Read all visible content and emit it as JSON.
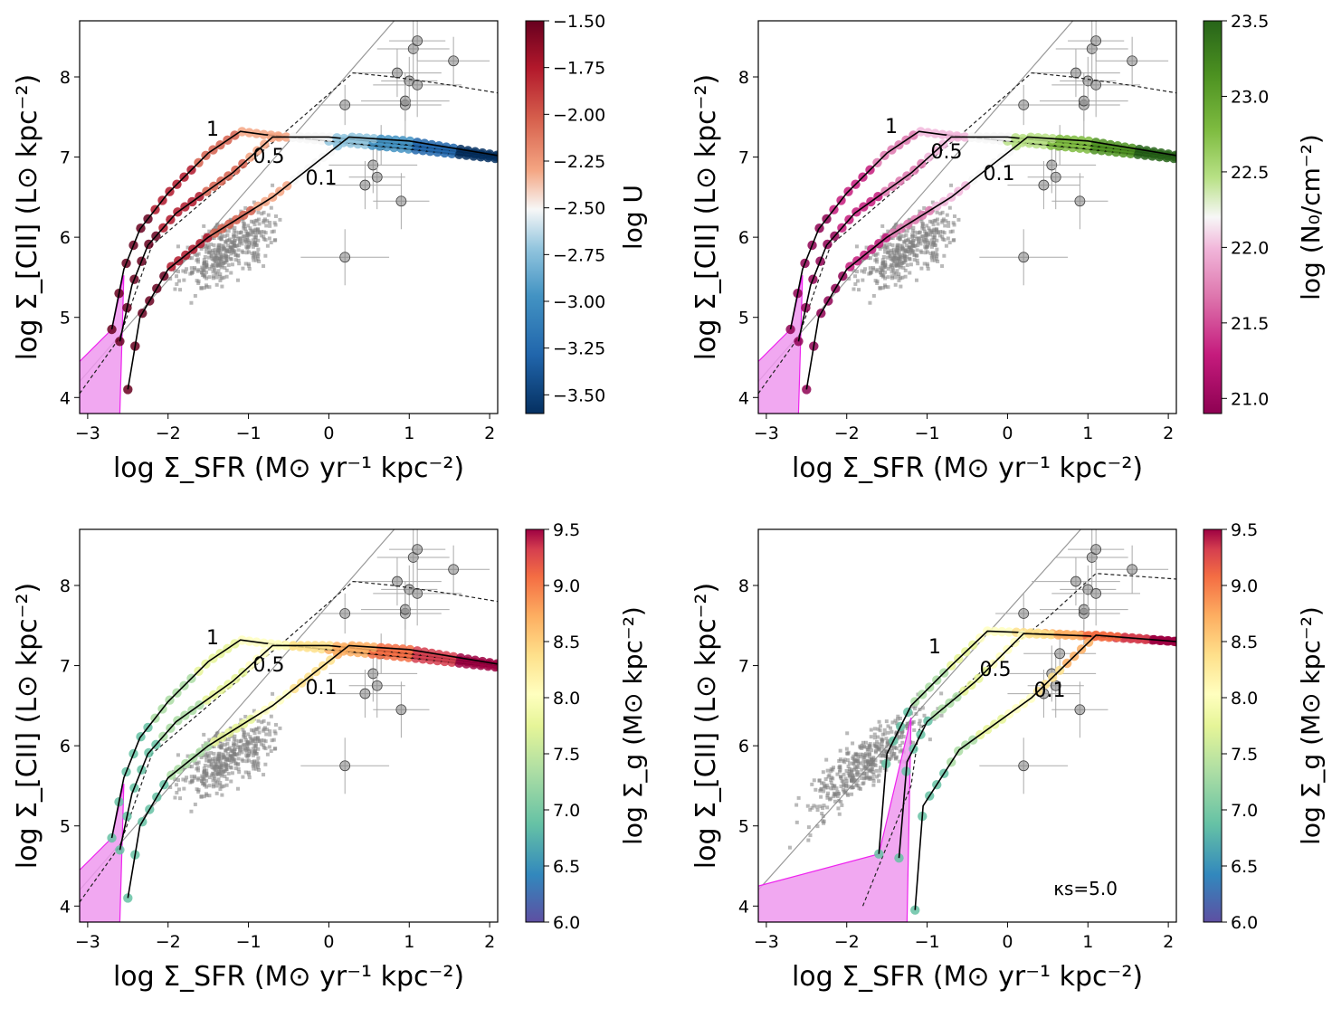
{
  "figure": {
    "panels_layout": "2x2 grid",
    "common": {
      "xlabel": "log Σ_SFR (M⊙ yr⁻¹ kpc⁻²)",
      "ylabel": "log Σ_[CII] (L⊙ kpc⁻²)",
      "xlim": [
        -3.1,
        2.1
      ],
      "ylim": [
        3.8,
        8.7
      ],
      "xticks": [
        "−3",
        "−2",
        "−1",
        "0",
        "1",
        "2"
      ],
      "xtick_values": [
        -3,
        -2,
        -1,
        0,
        1,
        2
      ],
      "yticks": [
        "4",
        "5",
        "6",
        "7",
        "8"
      ],
      "ytick_values": [
        4,
        5,
        6,
        7,
        8
      ],
      "colors": {
        "shade": "#ee99ee",
        "shade_edge": "#ee22ee",
        "curve": "#000000",
        "reference_line": "#999999",
        "scatter": "#888888"
      }
    },
    "panels": [
      {
        "id": "top-left",
        "colorbar_label": "log U",
        "colorbar_ticks": [
          "−1.50",
          "−1.75",
          "−2.00",
          "−2.25",
          "−2.50",
          "−2.75",
          "−3.00",
          "−3.25",
          "−3.50"
        ],
        "colorbar_tick_values": [
          -1.5,
          -1.75,
          -2.0,
          -2.25,
          -2.5,
          -2.75,
          -3.0,
          -3.25,
          -3.5
        ],
        "colorbar_range": [
          -3.6,
          -1.5
        ],
        "colormap": "RdBu",
        "curve_labels": [
          "1",
          "0.5",
          "0.1"
        ],
        "annotation": ""
      },
      {
        "id": "top-right",
        "colorbar_label": "log (N₀/cm⁻²)",
        "colorbar_ticks": [
          "23.5",
          "23.0",
          "22.5",
          "22.0",
          "21.5",
          "21.0"
        ],
        "colorbar_tick_values": [
          23.5,
          23.0,
          22.5,
          22.0,
          21.5,
          21.0
        ],
        "colorbar_range": [
          20.9,
          23.5
        ],
        "colormap": "PiYG",
        "curve_labels": [
          "1",
          "0.5",
          "0.1"
        ],
        "annotation": ""
      },
      {
        "id": "bottom-left",
        "colorbar_label": "log Σ_g (M⊙ kpc⁻²)",
        "colorbar_ticks": [
          "9.5",
          "9.0",
          "8.5",
          "8.0",
          "7.5",
          "7.0",
          "6.5",
          "6.0"
        ],
        "colorbar_tick_values": [
          9.5,
          9.0,
          8.5,
          8.0,
          7.5,
          7.0,
          6.5,
          6.0
        ],
        "colorbar_range": [
          6.0,
          9.5
        ],
        "colormap": "Spectral",
        "curve_labels": [
          "1",
          "0.5",
          "0.1"
        ],
        "annotation": ""
      },
      {
        "id": "bottom-right",
        "colorbar_label": "log Σ_g (M⊙ kpc⁻²)",
        "colorbar_ticks": [
          "9.5",
          "9.0",
          "8.5",
          "8.0",
          "7.5",
          "7.0",
          "6.5",
          "6.0"
        ],
        "colorbar_tick_values": [
          9.5,
          9.0,
          8.5,
          8.0,
          7.5,
          7.0,
          6.5,
          6.0
        ],
        "colorbar_range": [
          6.0,
          9.5
        ],
        "colormap": "Spectral",
        "curve_labels": [
          "1",
          "0.5",
          "0.1"
        ],
        "annotation": "κs=5.0"
      }
    ]
  },
  "chart_data": {
    "type": "scatter",
    "models_standard": {
      "curve_1": [
        [
          -2.7,
          4.85
        ],
        [
          -2.55,
          5.6
        ],
        [
          -2.35,
          6.1
        ],
        [
          -2.0,
          6.55
        ],
        [
          -1.5,
          7.05
        ],
        [
          -1.1,
          7.32
        ],
        [
          -0.8,
          7.28
        ],
        [
          0,
          7.2
        ],
        [
          1,
          7.1
        ],
        [
          2.1,
          6.98
        ]
      ],
      "curve_0.5": [
        [
          -2.6,
          4.7
        ],
        [
          -2.45,
          5.4
        ],
        [
          -2.25,
          5.9
        ],
        [
          -1.9,
          6.3
        ],
        [
          -1.2,
          6.8
        ],
        [
          -0.7,
          7.25
        ],
        [
          0,
          7.25
        ],
        [
          1,
          7.15
        ],
        [
          2.1,
          7.0
        ]
      ],
      "curve_0.1": [
        [
          -2.5,
          4.1
        ],
        [
          -2.35,
          5.0
        ],
        [
          -2.0,
          5.6
        ],
        [
          -1.5,
          6.0
        ],
        [
          -0.7,
          6.5
        ],
        [
          0.25,
          7.25
        ],
        [
          1,
          7.2
        ],
        [
          2.1,
          7.02
        ]
      ],
      "dashed": [
        [
          -3.1,
          4.05
        ],
        [
          -2.6,
          4.75
        ],
        [
          -2.2,
          5.9
        ],
        [
          -1.5,
          6.5
        ],
        [
          -0.5,
          7.35
        ],
        [
          0.3,
          8.05
        ],
        [
          0.8,
          8.0
        ],
        [
          1.5,
          7.9
        ],
        [
          2.1,
          7.8
        ]
      ],
      "gray_line": [
        [
          -3.1,
          4.2
        ],
        [
          0.9,
          8.8
        ]
      ]
    },
    "models_kappa5": {
      "curve_1": [
        [
          -1.6,
          4.65
        ],
        [
          -1.5,
          5.9
        ],
        [
          -1.2,
          6.5
        ],
        [
          -0.7,
          7.0
        ],
        [
          -0.25,
          7.43
        ],
        [
          0.5,
          7.4
        ],
        [
          1.5,
          7.35
        ],
        [
          2.1,
          7.3
        ]
      ],
      "curve_0.5": [
        [
          -1.35,
          4.6
        ],
        [
          -1.25,
          5.8
        ],
        [
          -1.0,
          6.3
        ],
        [
          -0.4,
          6.8
        ],
        [
          0.2,
          7.4
        ],
        [
          1,
          7.37
        ],
        [
          2.1,
          7.3
        ]
      ],
      "curve_0.1": [
        [
          -1.15,
          3.95
        ],
        [
          -1.05,
          5.25
        ],
        [
          -0.6,
          5.95
        ],
        [
          0.3,
          6.6
        ],
        [
          1.1,
          7.38
        ],
        [
          2.1,
          7.3
        ]
      ],
      "dashed": [
        [
          -1.8,
          4.0
        ],
        [
          -1.2,
          5.5
        ],
        [
          -1.1,
          6.2
        ],
        [
          -0.3,
          6.95
        ],
        [
          0.5,
          7.6
        ],
        [
          1.1,
          8.15
        ],
        [
          2.1,
          8.08
        ]
      ],
      "gray_line": [
        [
          -3.1,
          4.2
        ],
        [
          1.0,
          8.8
        ]
      ]
    },
    "galaxy_points": [
      {
        "x": 0.2,
        "y": 7.65
      },
      {
        "x": 0.45,
        "y": 6.65
      },
      {
        "x": 0.55,
        "y": 6.9
      },
      {
        "x": 0.6,
        "y": 6.75
      },
      {
        "x": 0.65,
        "y": 7.15
      },
      {
        "x": 0.85,
        "y": 8.05
      },
      {
        "x": 0.9,
        "y": 6.45
      },
      {
        "x": 0.95,
        "y": 7.65
      },
      {
        "x": 0.95,
        "y": 7.7
      },
      {
        "x": 1.0,
        "y": 7.95
      },
      {
        "x": 1.05,
        "y": 8.35
      },
      {
        "x": 1.1,
        "y": 7.9
      },
      {
        "x": 1.1,
        "y": 8.45
      },
      {
        "x": 1.55,
        "y": 8.2
      },
      {
        "x": 0.2,
        "y": 5.75
      }
    ]
  }
}
